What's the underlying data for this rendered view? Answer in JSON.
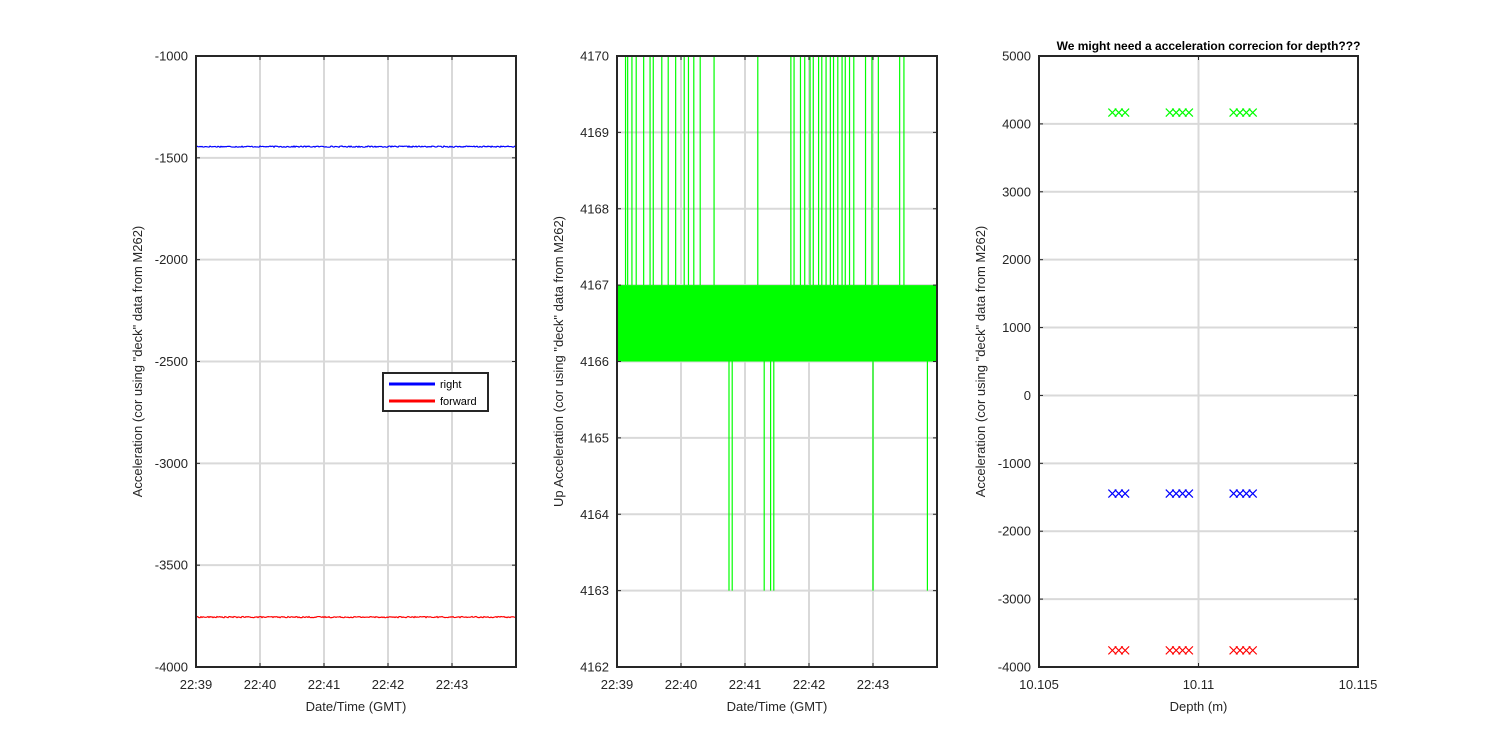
{
  "colors": {
    "blue": "#0000ff",
    "red": "#ff0000",
    "green": "#00ff00",
    "axis": "#262626",
    "grid": "#d9d9d9"
  },
  "chart_data": [
    {
      "type": "line",
      "title": "",
      "xlabel": "Date/Time (GMT)",
      "ylabel": "Acceleration (cor using \"deck\" data from M262)",
      "xlim": [
        "22:39",
        "22:44"
      ],
      "ylim": [
        -4000,
        -1000
      ],
      "xticks": [
        "22:39",
        "22:40",
        "22:41",
        "22:42",
        "22:43"
      ],
      "yticks": [
        -1000,
        -1500,
        -2000,
        -2500,
        -3000,
        -3500,
        -4000
      ],
      "grid": true,
      "legend": "center-right",
      "series": [
        {
          "name": "right",
          "color": "blue",
          "level": -1445,
          "noise": 6
        },
        {
          "name": "forward",
          "color": "red",
          "level": -3755,
          "noise": 6
        }
      ]
    },
    {
      "type": "line",
      "title": "",
      "xlabel": "Date/Time (GMT)",
      "ylabel": "Up Acceleration (cor using \"deck\" data from M262)",
      "xlim": [
        "22:39",
        "22:44"
      ],
      "ylim": [
        4162,
        4170
      ],
      "xticks": [
        "22:39",
        "22:40",
        "22:41",
        "22:42",
        "22:43"
      ],
      "yticks": [
        4170,
        4169,
        4168,
        4167,
        4166,
        4165,
        4164,
        4163,
        4162
      ],
      "grid": true,
      "series": [
        {
          "color": "green",
          "band": [
            4166,
            4167
          ],
          "spikes_high": [
            "22:39:08",
            "22:39:10",
            "22:39:14",
            "22:39:18",
            "22:39:25",
            "22:39:31",
            "22:39:34",
            "22:39:42",
            "22:39:48",
            "22:39:55",
            "22:40:03",
            "22:40:07",
            "22:40:12",
            "22:40:18",
            "22:40:31",
            "22:41:12",
            "22:41:43",
            "22:41:46",
            "22:41:52",
            "22:41:56",
            "22:42:01",
            "22:42:04",
            "22:42:09",
            "22:42:12",
            "22:42:16",
            "22:42:20",
            "22:42:23",
            "22:42:27",
            "22:42:31",
            "22:42:34",
            "22:42:38",
            "22:42:42",
            "22:42:53",
            "22:42:59",
            "22:43:05",
            "22:43:25",
            "22:43:29"
          ],
          "spikes_low": [
            "22:40:45",
            "22:40:48",
            "22:41:18",
            "22:41:24",
            "22:41:27",
            "22:43:00",
            "22:43:51"
          ]
        }
      ]
    },
    {
      "type": "scatter",
      "title": "We might need a acceleration correcion for depth???",
      "xlabel": "Depth (m)",
      "ylabel": "Acceleration (cor using \"deck\" data from M262)",
      "xlim": [
        10.105,
        10.115
      ],
      "ylim": [
        -4000,
        5000
      ],
      "xticks": [
        "10.105",
        "10.11",
        "10.115"
      ],
      "yticks": [
        5000,
        4000,
        3000,
        2000,
        1000,
        0,
        -1000,
        -2000,
        -3000,
        -4000
      ],
      "grid": true,
      "marker": "x",
      "series": [
        {
          "color": "green",
          "x": [
            10.1073,
            10.1075,
            10.1077,
            10.1091,
            10.1093,
            10.1095,
            10.1097,
            10.1111,
            10.1113,
            10.1115,
            10.1117
          ],
          "y": 4167
        },
        {
          "color": "blue",
          "x": [
            10.1073,
            10.1075,
            10.1077,
            10.1091,
            10.1093,
            10.1095,
            10.1097,
            10.1111,
            10.1113,
            10.1115,
            10.1117
          ],
          "y": -1445
        },
        {
          "color": "red",
          "x": [
            10.1073,
            10.1075,
            10.1077,
            10.1091,
            10.1093,
            10.1095,
            10.1097,
            10.1111,
            10.1113,
            10.1115,
            10.1117
          ],
          "y": -3755
        }
      ]
    }
  ]
}
